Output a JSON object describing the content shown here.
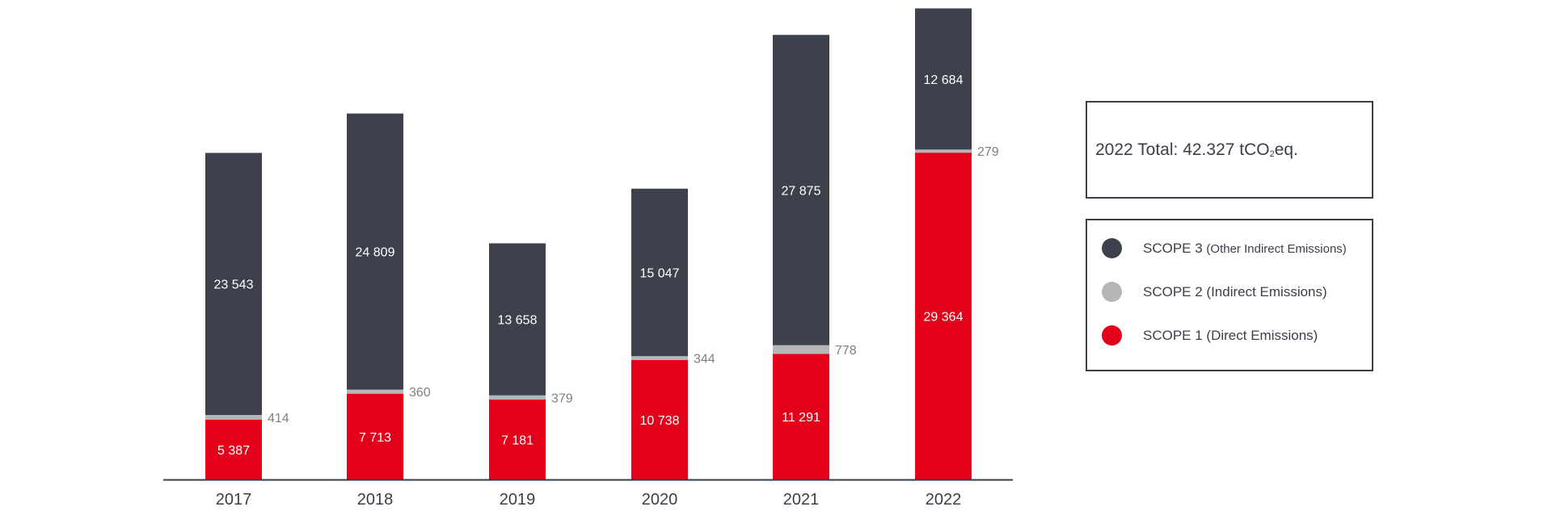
{
  "chart_data": {
    "type": "bar",
    "stacked": true,
    "categories": [
      "2017",
      "2018",
      "2019",
      "2020",
      "2021",
      "2022"
    ],
    "series": [
      {
        "name": "SCOPE 1 (Direct Emissions)",
        "color": "#e2001a",
        "values": [
          5387,
          7713,
          7181,
          10738,
          11291,
          29364
        ],
        "labels": [
          "5 387",
          "7 713",
          "7 181",
          "10 738",
          "11 291",
          "29 364"
        ]
      },
      {
        "name": "SCOPE 2 (Indirect Emissions)",
        "color": "#b5b6b8",
        "values": [
          414,
          360,
          379,
          344,
          778,
          279
        ],
        "labels": [
          "414",
          "360",
          "379",
          "344",
          "778",
          "279"
        ]
      },
      {
        "name": "SCOPE 3 (Other Indirect Emissions)",
        "color": "#3c414b",
        "values": [
          23543,
          24809,
          13658,
          15047,
          27875,
          12684
        ],
        "labels": [
          "23 543",
          "24 809",
          "13 658",
          "15 047",
          "27 875",
          "12 684"
        ]
      }
    ],
    "ylim": [
      0,
      42500
    ],
    "grid": false,
    "legend_position": "right"
  },
  "total": {
    "prefix": "2022 Total: 42.327 tCO",
    "subscript": "2",
    "suffix": "eq."
  },
  "legend": {
    "items": [
      {
        "main": "SCOPE 3 ",
        "sub": "(Other Indirect Emissions)",
        "color": "#3c414b"
      },
      {
        "main": "SCOPE 2 (Indirect Emissions)",
        "sub": "",
        "color": "#b5b6b8"
      },
      {
        "main": "SCOPE 1 (Direct Emissions)",
        "sub": "",
        "color": "#e2001a"
      }
    ]
  }
}
